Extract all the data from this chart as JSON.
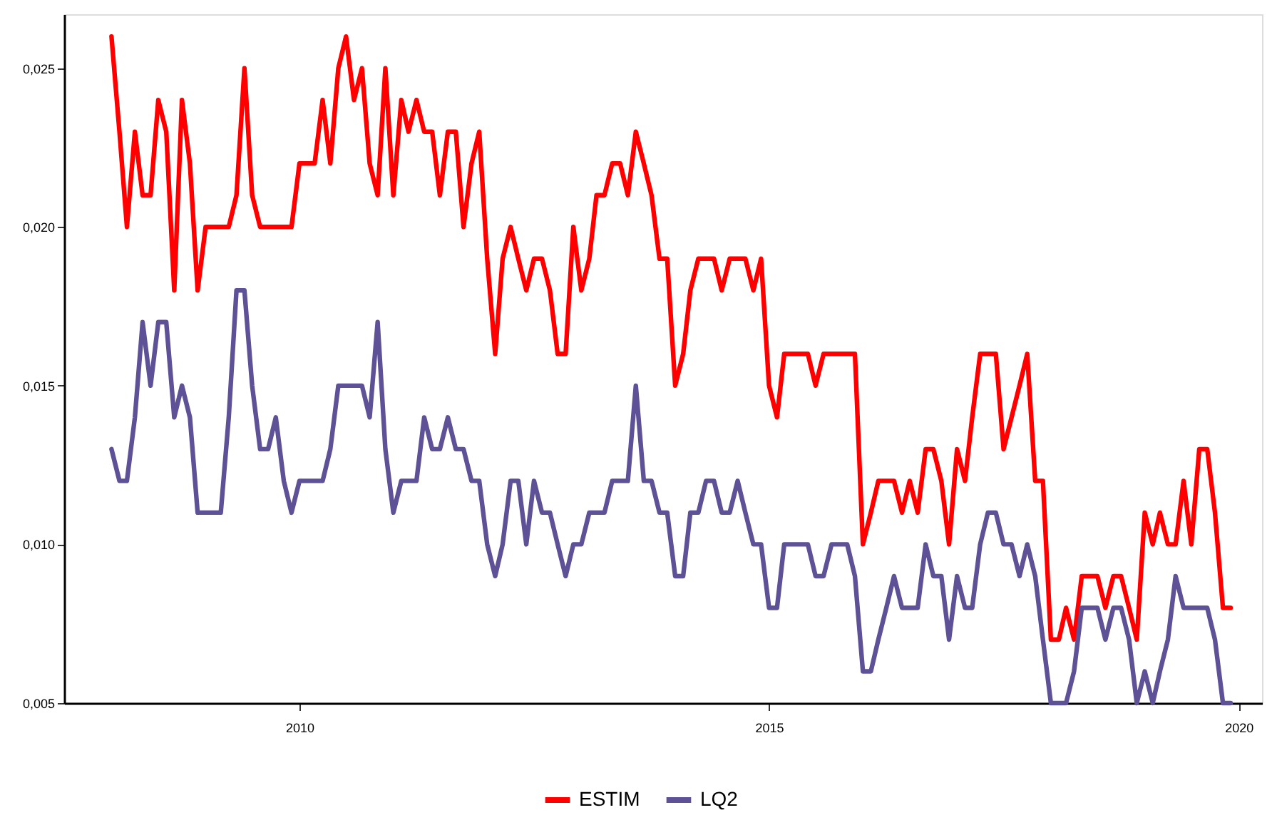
{
  "chart_data": {
    "type": "line",
    "x": [
      "2008-01",
      "2008-02",
      "2008-03",
      "2008-04",
      "2008-05",
      "2008-06",
      "2008-07",
      "2008-08",
      "2008-09",
      "2008-10",
      "2008-11",
      "2008-12",
      "2009-01",
      "2009-02",
      "2009-03",
      "2009-04",
      "2009-05",
      "2009-06",
      "2009-07",
      "2009-08",
      "2009-09",
      "2009-10",
      "2009-11",
      "2009-12",
      "2010-01",
      "2010-02",
      "2010-03",
      "2010-04",
      "2010-05",
      "2010-06",
      "2010-07",
      "2010-08",
      "2010-09",
      "2010-10",
      "2010-11",
      "2010-12",
      "2011-01",
      "2011-02",
      "2011-03",
      "2011-04",
      "2011-05",
      "2011-06",
      "2011-07",
      "2011-08",
      "2011-09",
      "2011-10",
      "2011-11",
      "2011-12",
      "2012-01",
      "2012-02",
      "2012-03",
      "2012-04",
      "2012-05",
      "2012-06",
      "2012-07",
      "2012-08",
      "2012-09",
      "2012-10",
      "2012-11",
      "2012-12",
      "2013-01",
      "2013-02",
      "2013-03",
      "2013-04",
      "2013-05",
      "2013-06",
      "2013-07",
      "2013-08",
      "2013-09",
      "2013-10",
      "2013-11",
      "2013-12",
      "2014-01",
      "2014-02",
      "2014-03",
      "2014-04",
      "2014-05",
      "2014-06",
      "2014-07",
      "2014-08",
      "2014-09",
      "2014-10",
      "2014-11",
      "2014-12",
      "2015-01",
      "2015-02",
      "2015-03",
      "2015-04",
      "2015-05",
      "2015-06",
      "2015-07",
      "2015-08",
      "2015-09",
      "2015-10",
      "2015-11",
      "2015-12",
      "2016-01",
      "2016-02",
      "2016-03",
      "2016-04",
      "2016-05",
      "2016-06",
      "2016-07",
      "2016-08",
      "2016-09",
      "2016-10",
      "2016-11",
      "2016-12",
      "2017-01",
      "2017-02",
      "2017-03",
      "2017-04",
      "2017-05",
      "2017-06",
      "2017-07",
      "2017-08",
      "2017-09",
      "2017-10",
      "2017-11",
      "2017-12",
      "2018-01",
      "2018-02",
      "2018-03",
      "2018-04",
      "2018-05",
      "2018-06",
      "2018-07",
      "2018-08",
      "2018-09",
      "2018-10",
      "2018-11",
      "2018-12",
      "2019-01",
      "2019-02",
      "2019-03",
      "2019-04",
      "2019-05",
      "2019-06",
      "2019-07",
      "2019-08",
      "2019-09",
      "2019-10",
      "2019-11",
      "2019-12"
    ],
    "ylim": [
      0.005,
      0.0267
    ],
    "yticks": [
      {
        "value": 0.005,
        "label": "0,005"
      },
      {
        "value": 0.01,
        "label": "0,010"
      },
      {
        "value": 0.015,
        "label": "0,015"
      },
      {
        "value": 0.02,
        "label": "0,020"
      },
      {
        "value": 0.025,
        "label": "0,025"
      }
    ],
    "xlim": [
      "2007-07",
      "2020-04"
    ],
    "xticks": [
      "2010",
      "2015",
      "2020"
    ],
    "legend": "bottom",
    "grid": false,
    "series": [
      {
        "name": "ESTIM",
        "color": "#ff0000",
        "values": [
          0.026,
          0.023,
          0.02,
          0.023,
          0.021,
          0.021,
          0.024,
          0.023,
          0.018,
          0.024,
          0.022,
          0.018,
          0.02,
          0.02,
          0.02,
          0.02,
          0.021,
          0.025,
          0.021,
          0.02,
          0.02,
          0.02,
          0.02,
          0.02,
          0.022,
          0.022,
          0.022,
          0.024,
          0.022,
          0.025,
          0.026,
          0.024,
          0.025,
          0.022,
          0.021,
          0.025,
          0.021,
          0.024,
          0.023,
          0.024,
          0.023,
          0.023,
          0.021,
          0.023,
          0.023,
          0.02,
          0.022,
          0.023,
          0.019,
          0.016,
          0.019,
          0.02,
          0.019,
          0.018,
          0.019,
          0.019,
          0.018,
          0.016,
          0.016,
          0.02,
          0.018,
          0.019,
          0.021,
          0.021,
          0.022,
          0.022,
          0.021,
          0.023,
          0.022,
          0.021,
          0.019,
          0.019,
          0.015,
          0.016,
          0.018,
          0.019,
          0.019,
          0.019,
          0.018,
          0.019,
          0.019,
          0.019,
          0.018,
          0.019,
          0.015,
          0.014,
          0.016,
          0.016,
          0.016,
          0.016,
          0.015,
          0.016,
          0.016,
          0.016,
          0.016,
          0.016,
          0.01,
          0.011,
          0.012,
          0.012,
          0.012,
          0.011,
          0.012,
          0.011,
          0.013,
          0.013,
          0.012,
          0.01,
          0.013,
          0.012,
          0.014,
          0.016,
          0.016,
          0.016,
          0.013,
          0.014,
          0.015,
          0.016,
          0.012,
          0.012,
          0.007,
          0.007,
          0.008,
          0.007,
          0.009,
          0.009,
          0.009,
          0.008,
          0.009,
          0.009,
          0.008,
          0.007,
          0.011,
          0.01,
          0.011,
          0.01,
          0.01,
          0.012,
          0.01,
          0.013,
          0.013,
          0.011,
          0.008,
          0.008
        ]
      },
      {
        "name": "LQ2",
        "color": "#5e5196",
        "values": [
          0.013,
          0.012,
          0.012,
          0.014,
          0.017,
          0.015,
          0.017,
          0.017,
          0.014,
          0.015,
          0.014,
          0.011,
          0.011,
          0.011,
          0.011,
          0.014,
          0.018,
          0.018,
          0.015,
          0.013,
          0.013,
          0.014,
          0.012,
          0.011,
          0.012,
          0.012,
          0.012,
          0.012,
          0.013,
          0.015,
          0.015,
          0.015,
          0.015,
          0.014,
          0.017,
          0.013,
          0.011,
          0.012,
          0.012,
          0.012,
          0.014,
          0.013,
          0.013,
          0.014,
          0.013,
          0.013,
          0.012,
          0.012,
          0.01,
          0.009,
          0.01,
          0.012,
          0.012,
          0.01,
          0.012,
          0.011,
          0.011,
          0.01,
          0.009,
          0.01,
          0.01,
          0.011,
          0.011,
          0.011,
          0.012,
          0.012,
          0.012,
          0.015,
          0.012,
          0.012,
          0.011,
          0.011,
          0.009,
          0.009,
          0.011,
          0.011,
          0.012,
          0.012,
          0.011,
          0.011,
          0.012,
          0.011,
          0.01,
          0.01,
          0.008,
          0.008,
          0.01,
          0.01,
          0.01,
          0.01,
          0.009,
          0.009,
          0.01,
          0.01,
          0.01,
          0.009,
          0.006,
          0.006,
          0.007,
          0.008,
          0.009,
          0.008,
          0.008,
          0.008,
          0.01,
          0.009,
          0.009,
          0.007,
          0.009,
          0.008,
          0.008,
          0.01,
          0.011,
          0.011,
          0.01,
          0.01,
          0.009,
          0.01,
          0.009,
          0.007,
          0.005,
          0.005,
          0.005,
          0.006,
          0.008,
          0.008,
          0.008,
          0.007,
          0.008,
          0.008,
          0.007,
          0.005,
          0.006,
          0.005,
          0.006,
          0.007,
          0.009,
          0.008,
          0.008,
          0.008,
          0.008,
          0.007,
          0.005,
          0.005
        ]
      }
    ]
  }
}
